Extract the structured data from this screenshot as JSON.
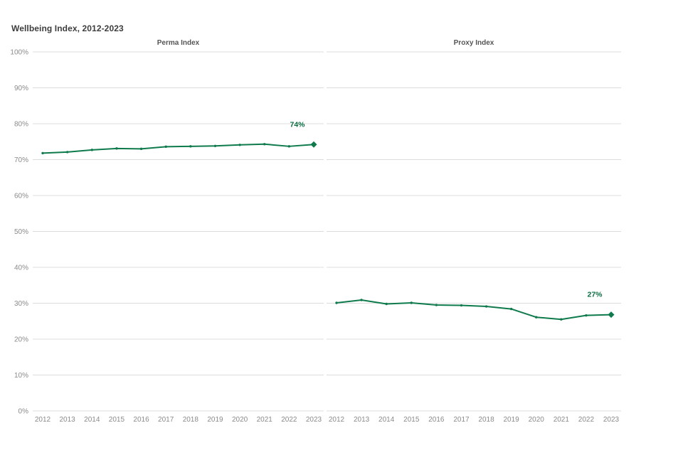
{
  "page": {
    "title": "Wellbeing Index, 2012-2023"
  },
  "colors": {
    "background": "#ffffff",
    "line": "#0f7b4c",
    "marker": "#0f7b4c",
    "end_label": "#0a6e42",
    "grid": "#dcdcdc",
    "axis_text": "#8a8a8a",
    "title_text": "#3d3d3d",
    "panel_title_text": "#555555"
  },
  "chart_data": [
    {
      "type": "line",
      "title": "Perma Index",
      "x": [
        "2012",
        "2013",
        "2014",
        "2015",
        "2016",
        "2017",
        "2018",
        "2019",
        "2020",
        "2021",
        "2022",
        "2023"
      ],
      "values": [
        71.8,
        72.1,
        72.7,
        73.1,
        73.0,
        73.6,
        73.7,
        73.8,
        74.1,
        74.3,
        73.7,
        74.2
      ],
      "end_label": "74%",
      "ylim": [
        0,
        100
      ],
      "ytick_step": 10,
      "ytick_labels": [
        "0%",
        "10%",
        "20%",
        "30%",
        "40%",
        "50%",
        "60%",
        "70%",
        "80%",
        "90%",
        "100%"
      ],
      "grid": true,
      "legend": "none"
    },
    {
      "type": "line",
      "title": "Proxy Index",
      "x": [
        "2012",
        "2013",
        "2014",
        "2015",
        "2016",
        "2017",
        "2018",
        "2019",
        "2020",
        "2021",
        "2022",
        "2023"
      ],
      "values": [
        30.1,
        30.9,
        29.8,
        30.1,
        29.5,
        29.4,
        29.1,
        28.4,
        26.1,
        25.5,
        26.6,
        26.8
      ],
      "end_label": "27%",
      "ylim": [
        0,
        100
      ],
      "ytick_step": 10,
      "ytick_labels": [
        "0%",
        "10%",
        "20%",
        "30%",
        "40%",
        "50%",
        "60%",
        "70%",
        "80%",
        "90%",
        "100%"
      ],
      "grid": true,
      "legend": "none"
    }
  ]
}
